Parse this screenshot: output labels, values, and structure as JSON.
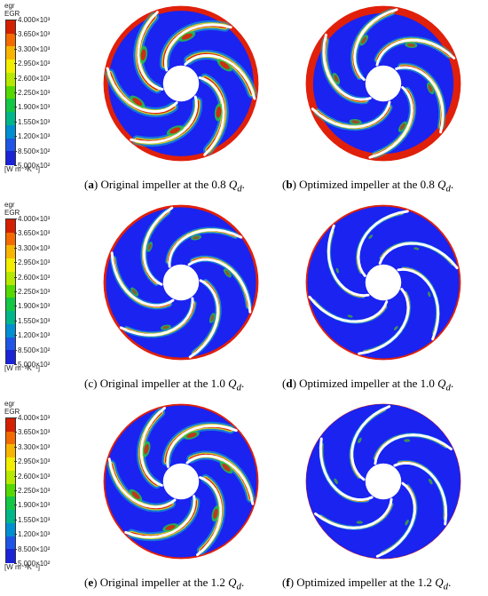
{
  "legend": {
    "var_name": "egr",
    "var_name2": "EGR",
    "unit": "[W m⁻³K⁻¹]",
    "ticks": [
      "4.000×10³",
      "3.650×10³",
      "3.300×10³",
      "2.950×10³",
      "2.600×10³",
      "2.250×10³",
      "1.900×10³",
      "1.550×10³",
      "1.200×10³",
      "8.500×10²",
      "5.000×10²"
    ],
    "colors": [
      "#d41f00",
      "#f26a00",
      "#f7b500",
      "#f2ee00",
      "#b7e800",
      "#55d900",
      "#14c744",
      "#00b78a",
      "#008fd1",
      "#1e55e6",
      "#1a23d6"
    ]
  },
  "colors": {
    "blue": "#1a23f0",
    "red": "#e0200a",
    "yellow": "#f0ea00",
    "green": "#28c83c",
    "cyan": "#16c0c8",
    "blade": "#ffffff"
  },
  "panels": [
    {
      "letter": "a",
      "text": "Original impeller at the 0.8 ",
      "q": "Q",
      "sub": "d",
      "end": "."
    },
    {
      "letter": "b",
      "text": "Optimized impeller at the 0.8 ",
      "q": "Q",
      "sub": "d",
      "end": "."
    },
    {
      "letter": "c",
      "text": "Original impeller at the 1.0 ",
      "q": "Q",
      "sub": "d",
      "end": "."
    },
    {
      "letter": "d",
      "text": "Optimized impeller at the 1.0 ",
      "q": "Q",
      "sub": "d",
      "end": "."
    },
    {
      "letter": "e",
      "text": "Original impeller at the 1.2 ",
      "q": "Q",
      "sub": "d",
      "end": "."
    },
    {
      "letter": "f",
      "text": "Optimized impeller at the 1.2 ",
      "q": "Q",
      "sub": "d",
      "end": "."
    }
  ]
}
